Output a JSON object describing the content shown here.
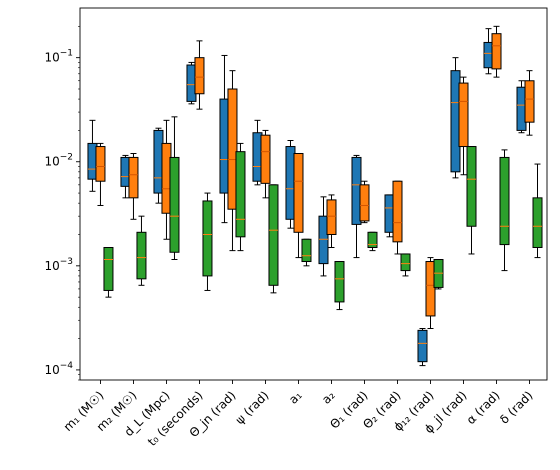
{
  "chart_data": {
    "type": "boxplot",
    "title": "",
    "xlabel": "",
    "ylabel": "",
    "yscale": "log",
    "ylim": [
      8e-05,
      0.3
    ],
    "yticks": [
      {
        "value": 0.0001,
        "base": "10",
        "exp": "−4"
      },
      {
        "value": 0.001,
        "base": "10",
        "exp": "−3"
      },
      {
        "value": 0.01,
        "base": "10",
        "exp": "−2"
      },
      {
        "value": 0.1,
        "base": "10",
        "exp": "−1"
      }
    ],
    "categories": [
      "m₁ (M☉)",
      "m₂ (M☉)",
      "d_L (Mpc)",
      "t₀ (seconds)",
      "Θ_jn (rad)",
      "ψ (rad)",
      "a₁",
      "a₂",
      "Θ₁ (rad)",
      "Θ₂ (rad)",
      "ϕ₁₂ (rad)",
      "ϕ_jl (rad)",
      "α (rad)",
      "δ (rad)"
    ],
    "series": [
      {
        "color": "#1f77b4",
        "boxes": [
          {
            "whislo": 0.0052,
            "q1": 0.0068,
            "med": 0.0085,
            "q3": 0.015,
            "whishi": 0.025
          },
          {
            "whislo": 0.0045,
            "q1": 0.0058,
            "med": 0.0072,
            "q3": 0.011,
            "whishi": 0.0115
          },
          {
            "whislo": 0.004,
            "q1": 0.005,
            "med": 0.007,
            "q3": 0.02,
            "whishi": 0.021
          },
          {
            "whislo": 0.036,
            "q1": 0.038,
            "med": 0.055,
            "q3": 0.085,
            "whishi": 0.09
          },
          {
            "whislo": 0.0026,
            "q1": 0.005,
            "med": 0.0105,
            "q3": 0.04,
            "whishi": 0.105
          },
          {
            "whislo": 0.006,
            "q1": 0.0065,
            "med": 0.009,
            "q3": 0.019,
            "whishi": 0.025
          },
          {
            "whislo": 0.0023,
            "q1": 0.0028,
            "med": 0.0055,
            "q3": 0.014,
            "whishi": 0.016
          },
          {
            "whislo": 0.0008,
            "q1": 0.00105,
            "med": 0.0018,
            "q3": 0.003,
            "whishi": 0.0046
          },
          {
            "whislo": 0.0012,
            "q1": 0.0025,
            "med": 0.006,
            "q3": 0.011,
            "whishi": 0.0115
          },
          {
            "whislo": 0.0019,
            "q1": 0.0021,
            "med": 0.0036,
            "q3": 0.0048,
            "whishi": 0.0048
          },
          {
            "whislo": 0.00011,
            "q1": 0.00012,
            "med": 0.00018,
            "q3": 0.00024,
            "whishi": 0.00025
          },
          {
            "whislo": 0.007,
            "q1": 0.008,
            "med": 0.037,
            "q3": 0.075,
            "whishi": 0.1
          },
          {
            "whislo": 0.07,
            "q1": 0.08,
            "med": 0.11,
            "q3": 0.14,
            "whishi": 0.19
          },
          {
            "whislo": 0.019,
            "q1": 0.02,
            "med": 0.035,
            "q3": 0.052,
            "whishi": 0.06
          }
        ]
      },
      {
        "color": "#ff7f0e",
        "boxes": [
          {
            "whislo": 0.0038,
            "q1": 0.0065,
            "med": 0.009,
            "q3": 0.014,
            "whishi": 0.015
          },
          {
            "whislo": 0.0028,
            "q1": 0.0045,
            "med": 0.0075,
            "q3": 0.011,
            "whishi": 0.012
          },
          {
            "whislo": 0.0018,
            "q1": 0.0032,
            "med": 0.0055,
            "q3": 0.015,
            "whishi": 0.025
          },
          {
            "whislo": 0.032,
            "q1": 0.045,
            "med": 0.065,
            "q3": 0.1,
            "whishi": 0.145
          },
          {
            "whislo": 0.0014,
            "q1": 0.0035,
            "med": 0.0105,
            "q3": 0.05,
            "whishi": 0.075
          },
          {
            "whislo": 0.0045,
            "q1": 0.0062,
            "med": 0.0125,
            "q3": 0.018,
            "whishi": 0.02
          },
          {
            "whislo": 0.0012,
            "q1": 0.0021,
            "med": 0.0065,
            "q3": 0.012,
            "whishi": 0.012
          },
          {
            "whislo": 0.0015,
            "q1": 0.002,
            "med": 0.003,
            "q3": 0.0043,
            "whishi": 0.0048
          },
          {
            "whislo": 0.0026,
            "q1": 0.0027,
            "med": 0.0038,
            "q3": 0.006,
            "whishi": 0.0065
          },
          {
            "whislo": 0.0013,
            "q1": 0.0017,
            "med": 0.0026,
            "q3": 0.0065,
            "whishi": 0.0065
          },
          {
            "whislo": 0.00025,
            "q1": 0.00033,
            "med": 0.00065,
            "q3": 0.0011,
            "whishi": 0.0012
          },
          {
            "whislo": 0.0075,
            "q1": 0.014,
            "med": 0.038,
            "q3": 0.057,
            "whishi": 0.065
          },
          {
            "whislo": 0.065,
            "q1": 0.078,
            "med": 0.13,
            "q3": 0.17,
            "whishi": 0.2
          },
          {
            "whislo": 0.018,
            "q1": 0.024,
            "med": 0.04,
            "q3": 0.06,
            "whishi": 0.075
          }
        ]
      },
      {
        "color": "#2ca02c",
        "boxes": [
          {
            "whislo": 0.0005,
            "q1": 0.00058,
            "med": 0.00115,
            "q3": 0.0015,
            "whishi": 0.0015
          },
          {
            "whislo": 0.00065,
            "q1": 0.00075,
            "med": 0.0012,
            "q3": 0.0021,
            "whishi": 0.003
          },
          {
            "whislo": 0.00115,
            "q1": 0.00135,
            "med": 0.003,
            "q3": 0.011,
            "whishi": 0.027
          },
          {
            "whislo": 0.00058,
            "q1": 0.0008,
            "med": 0.002,
            "q3": 0.0042,
            "whishi": 0.005
          },
          {
            "whislo": 0.0014,
            "q1": 0.0019,
            "med": 0.0028,
            "q3": 0.0125,
            "whishi": 0.015
          },
          {
            "whislo": 0.00055,
            "q1": 0.00065,
            "med": 0.0022,
            "q3": 0.006,
            "whishi": 0.006
          },
          {
            "whislo": 0.001,
            "q1": 0.0011,
            "med": 0.00125,
            "q3": 0.0018,
            "whishi": 0.0018
          },
          {
            "whislo": 0.00038,
            "q1": 0.00045,
            "med": 0.00075,
            "q3": 0.0011,
            "whishi": 0.0011
          },
          {
            "whislo": 0.0014,
            "q1": 0.0015,
            "med": 0.0016,
            "q3": 0.0021,
            "whishi": 0.0021
          },
          {
            "whislo": 0.0008,
            "q1": 0.0009,
            "med": 0.00105,
            "q3": 0.0013,
            "whishi": 0.0013
          },
          {
            "whislo": 0.0006,
            "q1": 0.00062,
            "med": 0.00085,
            "q3": 0.00115,
            "whishi": 0.00115
          },
          {
            "whislo": 0.0013,
            "q1": 0.0024,
            "med": 0.0068,
            "q3": 0.014,
            "whishi": 0.014
          },
          {
            "whislo": 0.0009,
            "q1": 0.0016,
            "med": 0.0024,
            "q3": 0.011,
            "whishi": 0.013
          },
          {
            "whislo": 0.0012,
            "q1": 0.0015,
            "med": 0.0024,
            "q3": 0.0045,
            "whishi": 0.0095
          }
        ]
      }
    ]
  }
}
